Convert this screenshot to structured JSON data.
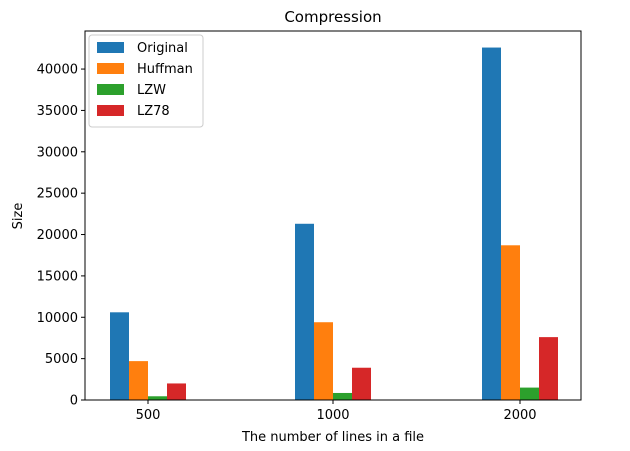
{
  "chart_data": {
    "type": "bar",
    "title": "Compression",
    "xlabel": "The number of lines in a file",
    "ylabel": "Size",
    "categories": [
      "500",
      "1000",
      "2000"
    ],
    "series": [
      {
        "name": "Original",
        "color": "#1f77b4",
        "values": [
          10600,
          21300,
          42600
        ]
      },
      {
        "name": "Huffman",
        "color": "#ff7f0e",
        "values": [
          4700,
          9400,
          18700
        ]
      },
      {
        "name": "LZW",
        "color": "#2ca02c",
        "values": [
          450,
          850,
          1500
        ]
      },
      {
        "name": "LZ78",
        "color": "#d62728",
        "values": [
          2000,
          3900,
          7600
        ]
      }
    ],
    "ylim": [
      0,
      44600
    ],
    "yticks": [
      0,
      5000,
      10000,
      15000,
      20000,
      25000,
      30000,
      35000,
      40000
    ],
    "grid": false,
    "legend_position": "top-left"
  }
}
